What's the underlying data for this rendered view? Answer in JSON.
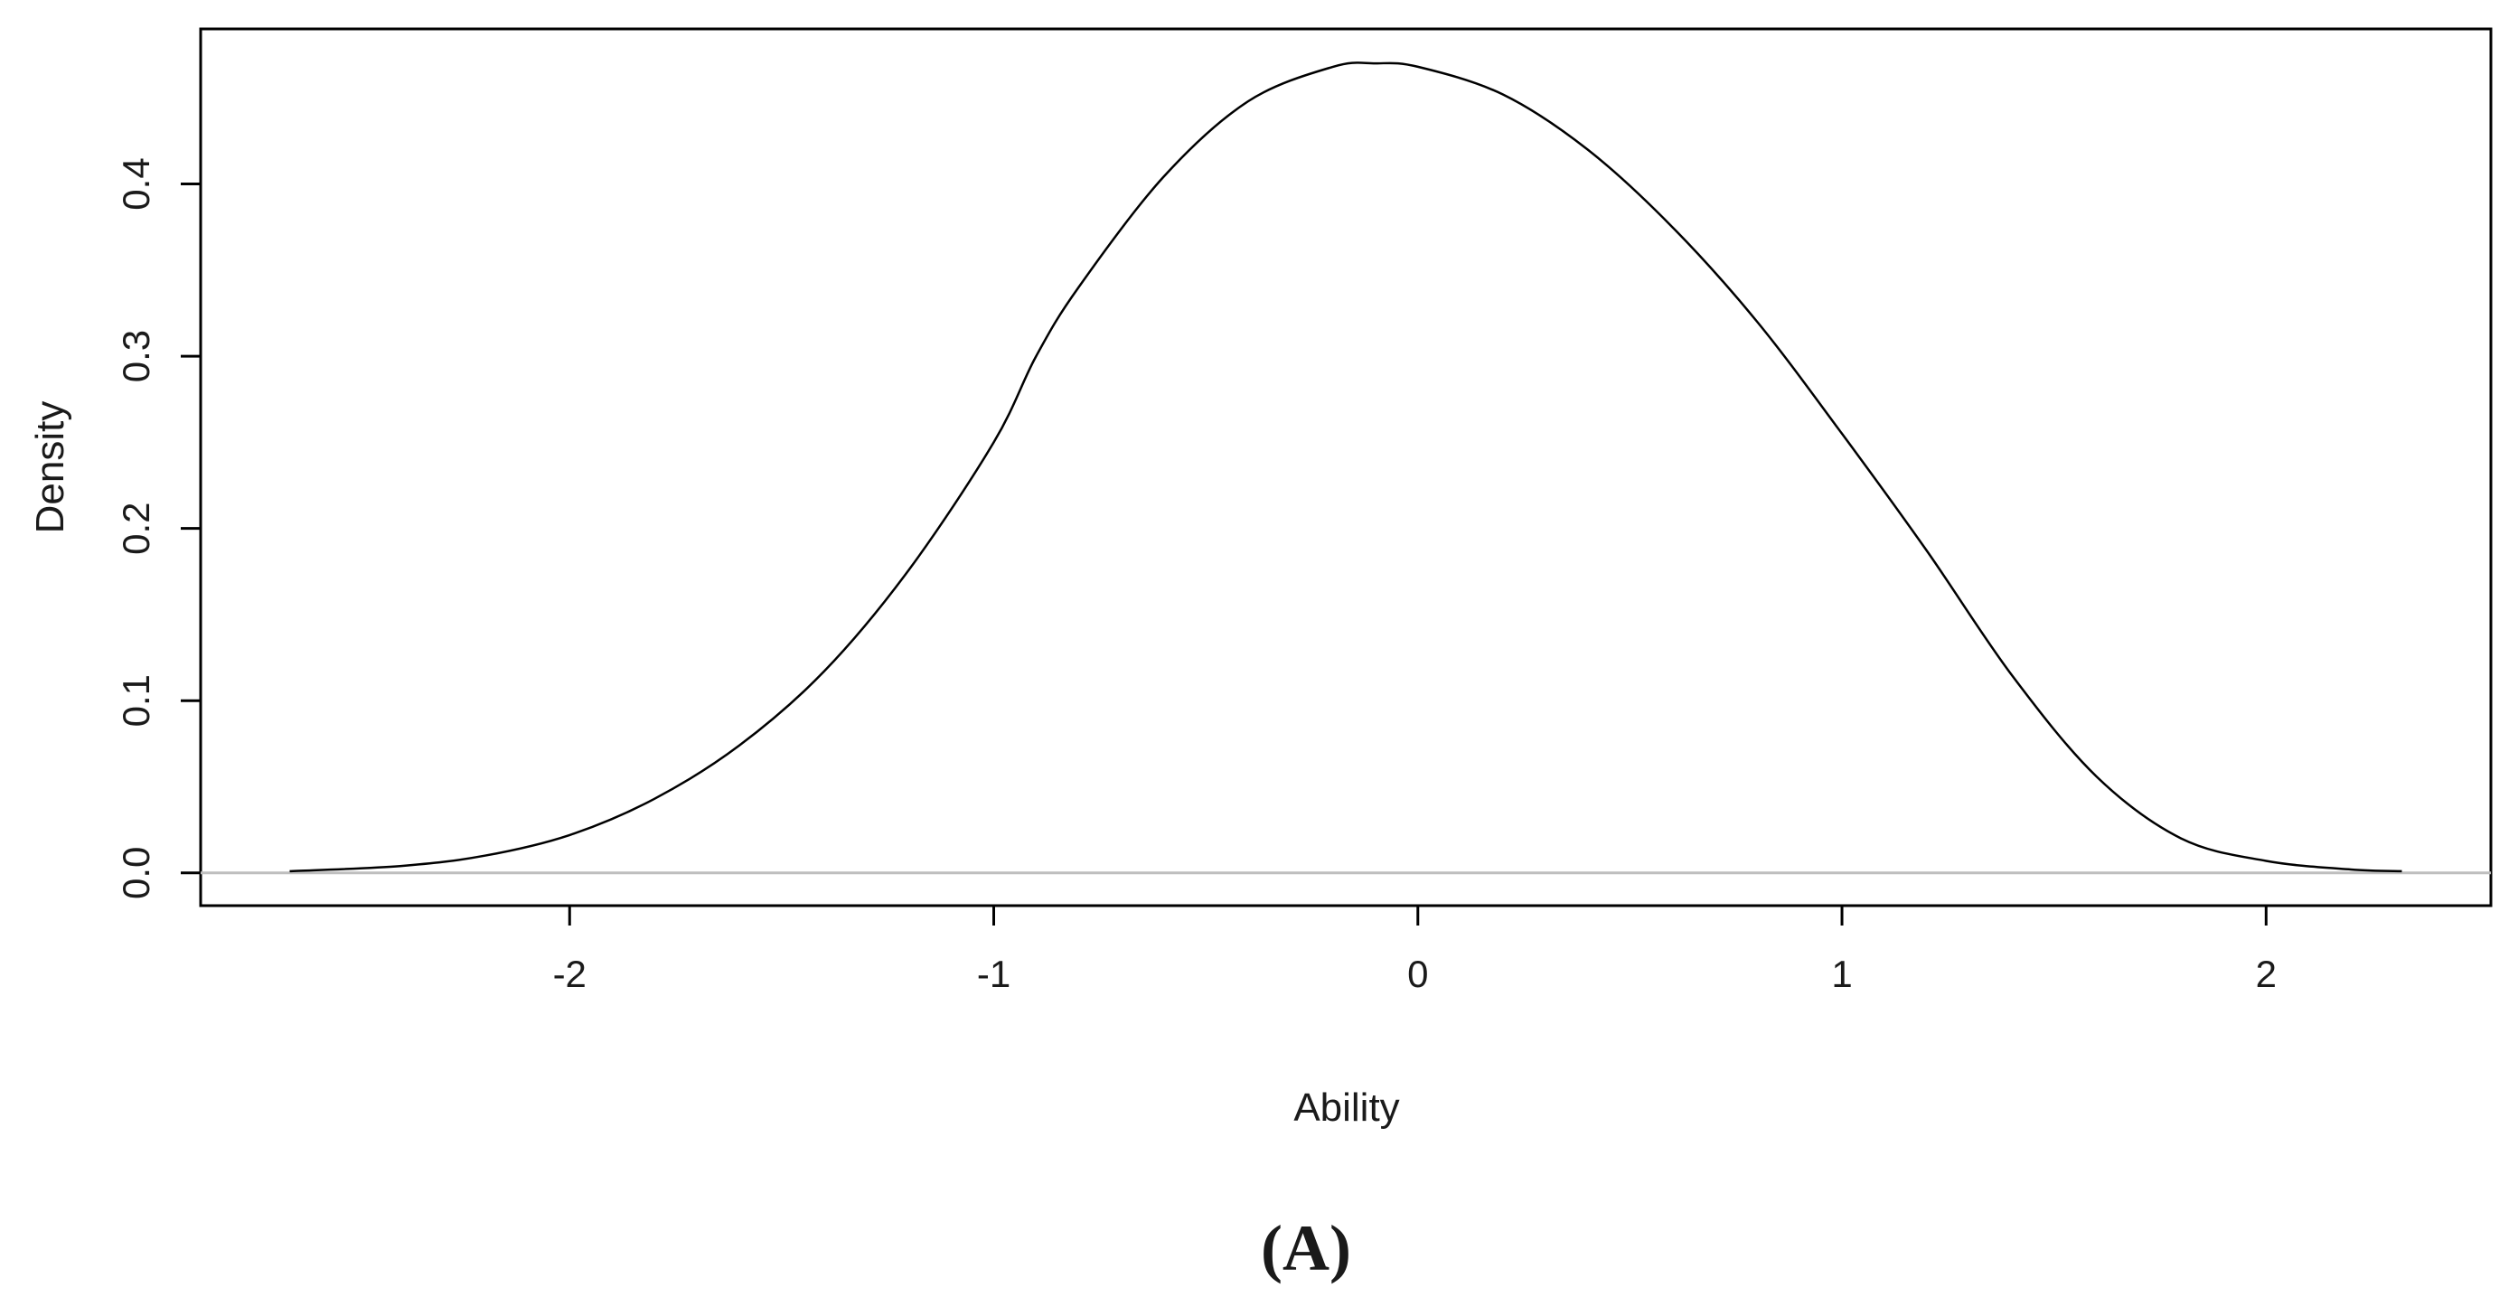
{
  "chart_data": {
    "type": "line",
    "title": "",
    "xlabel": "Ability",
    "ylabel": "Density",
    "panel_label": "(A)",
    "xlim": [
      -2.87,
      2.53
    ],
    "ylim": [
      -0.019,
      0.49
    ],
    "x_ticks": [
      -2,
      -1,
      0,
      1,
      2
    ],
    "y_ticks": [
      0.0,
      0.1,
      0.2,
      0.3,
      0.4
    ],
    "x_tick_labels": [
      "-2",
      "-1",
      "0",
      "1",
      "2"
    ],
    "y_tick_labels": [
      "0.0",
      "0.1",
      "0.2",
      "0.3",
      "0.4"
    ],
    "grid": false,
    "baseline": 0,
    "series": [
      {
        "x": [
          -2.66,
          -2.4,
          -2.2,
          -2.0,
          -1.8,
          -1.6,
          -1.4,
          -1.2,
          -1.0,
          -0.9,
          -0.8,
          -0.6,
          -0.4,
          -0.2,
          -0.1,
          0.0,
          0.2,
          0.4,
          0.6,
          0.8,
          1.0,
          1.2,
          1.4,
          1.6,
          1.8,
          2.0,
          2.2,
          2.32
        ],
        "y": [
          0.001,
          0.004,
          0.01,
          0.022,
          0.043,
          0.074,
          0.117,
          0.176,
          0.25,
          0.3,
          0.34,
          0.404,
          0.448,
          0.468,
          0.47,
          0.468,
          0.452,
          0.42,
          0.375,
          0.32,
          0.255,
          0.187,
          0.115,
          0.056,
          0.02,
          0.007,
          0.002,
          0.001
        ],
        "color": "#000000"
      }
    ],
    "colors": {
      "curve": "#000000",
      "baseline": "#bebebe",
      "axes": "#000000"
    }
  }
}
